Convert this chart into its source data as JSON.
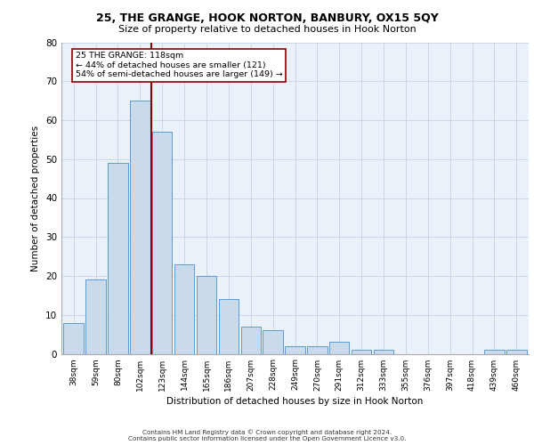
{
  "title1": "25, THE GRANGE, HOOK NORTON, BANBURY, OX15 5QY",
  "title2": "Size of property relative to detached houses in Hook Norton",
  "xlabel": "Distribution of detached houses by size in Hook Norton",
  "ylabel": "Number of detached properties",
  "categories": [
    "38sqm",
    "59sqm",
    "80sqm",
    "102sqm",
    "123sqm",
    "144sqm",
    "165sqm",
    "186sqm",
    "207sqm",
    "228sqm",
    "249sqm",
    "270sqm",
    "291sqm",
    "312sqm",
    "333sqm",
    "355sqm",
    "376sqm",
    "397sqm",
    "418sqm",
    "439sqm",
    "460sqm"
  ],
  "values": [
    8,
    19,
    49,
    65,
    57,
    23,
    20,
    14,
    7,
    6,
    2,
    2,
    3,
    1,
    1,
    0,
    0,
    0,
    0,
    1,
    1
  ],
  "bar_color": "#c9daea",
  "bar_edge_color": "#5b9bd5",
  "property_line_color": "#8b0000",
  "annotation_text": "25 THE GRANGE: 118sqm\n← 44% of detached houses are smaller (121)\n54% of semi-detached houses are larger (149) →",
  "annotation_box_color": "#ffffff",
  "annotation_box_edge_color": "#8b0000",
  "ylim": [
    0,
    80
  ],
  "yticks": [
    0,
    10,
    20,
    30,
    40,
    50,
    60,
    70,
    80
  ],
  "grid_color": "#c8d8e8",
  "background_color": "#eaf1f8",
  "footer_line1": "Contains HM Land Registry data © Crown copyright and database right 2024.",
  "footer_line2": "Contains public sector information licensed under the Open Government Licence v3.0."
}
